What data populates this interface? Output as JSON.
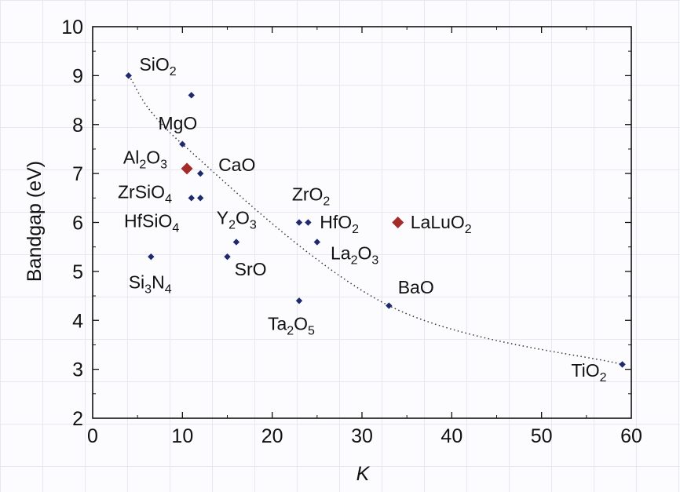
{
  "chart_data": {
    "type": "scatter",
    "xlabel": "K",
    "ylabel": "Bandgap (eV)",
    "xlim": [
      0,
      60
    ],
    "ylim": [
      2,
      10
    ],
    "x_ticks": [
      "0",
      "10",
      "20",
      "30",
      "40",
      "50",
      "60"
    ],
    "y_ticks": [
      "2",
      "3",
      "4",
      "5",
      "6",
      "7",
      "8",
      "9",
      "10"
    ],
    "grid": false,
    "colors": {
      "points": "#1f2a6e",
      "highlight": "#a52a2a",
      "trend": "#333333"
    },
    "points": [
      {
        "x": 4,
        "y": 9.0
      },
      {
        "x": 11,
        "y": 8.6
      },
      {
        "x": 10,
        "y": 7.6
      },
      {
        "x": 12,
        "y": 7.0
      },
      {
        "x": 11,
        "y": 6.5
      },
      {
        "x": 12,
        "y": 6.5
      },
      {
        "x": 6.5,
        "y": 5.3
      },
      {
        "x": 16,
        "y": 5.6
      },
      {
        "x": 15,
        "y": 5.3
      },
      {
        "x": 23,
        "y": 6.0
      },
      {
        "x": 24,
        "y": 6.0
      },
      {
        "x": 25,
        "y": 5.6
      },
      {
        "x": 23,
        "y": 4.4
      },
      {
        "x": 33,
        "y": 4.3
      },
      {
        "x": 59,
        "y": 3.1
      }
    ],
    "highlighted_points": [
      {
        "x": 10.5,
        "y": 7.1
      },
      {
        "x": 34,
        "y": 6.0
      }
    ],
    "labels": [
      {
        "base": "SiO",
        "sub": "2",
        "after": "",
        "x": 5.2,
        "y": 9.1
      },
      {
        "base": "MgO",
        "sub": "",
        "after": "",
        "x": 7.3,
        "y": 7.9
      },
      {
        "base": "Al",
        "sub": "2",
        "after": "O",
        "sub2": "3",
        "x": 3.4,
        "y": 7.2
      },
      {
        "base": "CaO",
        "sub": "",
        "after": "",
        "x": 14,
        "y": 7.05
      },
      {
        "base": "ZrSiO",
        "sub": "4",
        "after": "",
        "x": 2.8,
        "y": 6.5
      },
      {
        "base": "HfSiO",
        "sub": "4",
        "after": "",
        "x": 3.5,
        "y": 5.9
      },
      {
        "base": "Y",
        "sub": "2",
        "after": "O",
        "sub2": "3",
        "x": 13.8,
        "y": 5.97
      },
      {
        "base": "SrO",
        "sub": "",
        "after": "",
        "x": 15.8,
        "y": 4.92
      },
      {
        "base": "Si",
        "sub": "3",
        "after": "N",
        "sub2": "4",
        "x": 4,
        "y": 4.65
      },
      {
        "base": "ZrO",
        "sub": "2",
        "after": "",
        "x": 22.2,
        "y": 6.45
      },
      {
        "base": "HfO",
        "sub": "2",
        "after": "",
        "x": 25.3,
        "y": 5.88
      },
      {
        "base": "La",
        "sub": "2",
        "after": "O",
        "sub2": "3",
        "x": 26.5,
        "y": 5.25
      },
      {
        "base": "LaLuO",
        "sub": "2",
        "after": "",
        "x": 35.4,
        "y": 5.88
      },
      {
        "base": "Ta",
        "sub": "2",
        "after": "O",
        "sub2": "5",
        "x": 19.5,
        "y": 3.8
      },
      {
        "base": "BaO",
        "sub": "",
        "after": "",
        "x": 34,
        "y": 4.55
      },
      {
        "base": "TiO",
        "sub": "2",
        "after": "",
        "x": 53.3,
        "y": 2.85
      }
    ]
  }
}
